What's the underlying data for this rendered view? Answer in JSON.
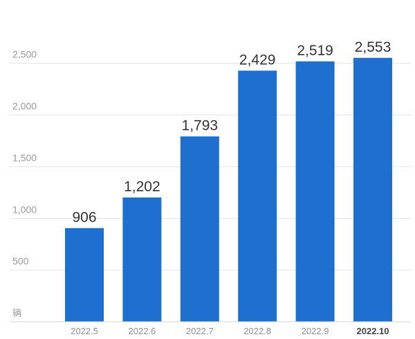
{
  "chart_data": {
    "type": "bar",
    "title": "",
    "xlabel": "",
    "ylabel": "",
    "unit_label": "辆",
    "categories": [
      "2022.5",
      "2022.6",
      "2022.7",
      "2022.8",
      "2022.9",
      "2022.10"
    ],
    "values": [
      906,
      1202,
      1793,
      2429,
      2519,
      2553
    ],
    "value_labels": [
      "906",
      "1,202",
      "1,793",
      "2,429",
      "2,519",
      "2,553"
    ],
    "yticks": [
      500,
      1000,
      1500,
      2000,
      2500
    ],
    "ytick_labels": [
      "500",
      "1,000",
      "1,500",
      "2,000",
      "2,500"
    ],
    "ylim": [
      0,
      2700
    ],
    "highlight_category": "2022.10",
    "grid": true,
    "legend": "none",
    "colors": {
      "bar": "#1f6fd0",
      "grid": "#e3e3e3",
      "tick_text": "#9a9a9a",
      "value_text": "#333333"
    }
  }
}
